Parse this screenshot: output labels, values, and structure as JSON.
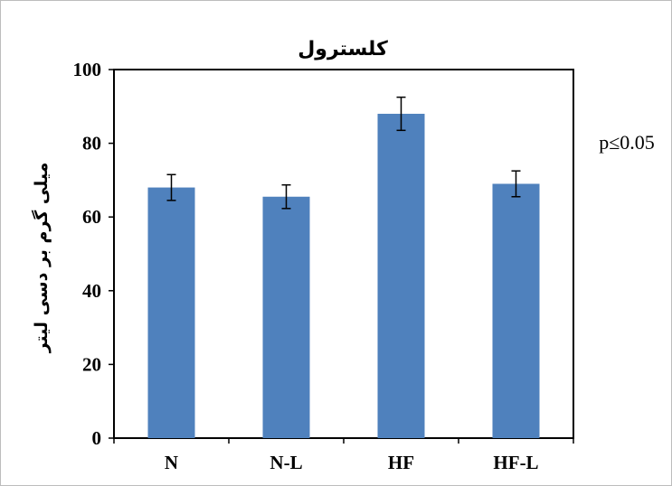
{
  "chart_data": {
    "type": "bar",
    "title": "کلسترول",
    "xlabel": "",
    "ylabel": "میلی گرم بر دسی لیتر",
    "categories": [
      "N",
      "N-L",
      "HF",
      "HF-L"
    ],
    "values": [
      68,
      65.5,
      88,
      69
    ],
    "errors": [
      3.5,
      3.2,
      4.5,
      3.5
    ],
    "ylim": [
      0,
      100
    ],
    "yticks": [
      "0",
      "20",
      "40",
      "60",
      "80",
      "100"
    ],
    "annotation": "p≤0.05",
    "bar_color": "#4f81bd",
    "grid": false,
    "legend": "none"
  }
}
